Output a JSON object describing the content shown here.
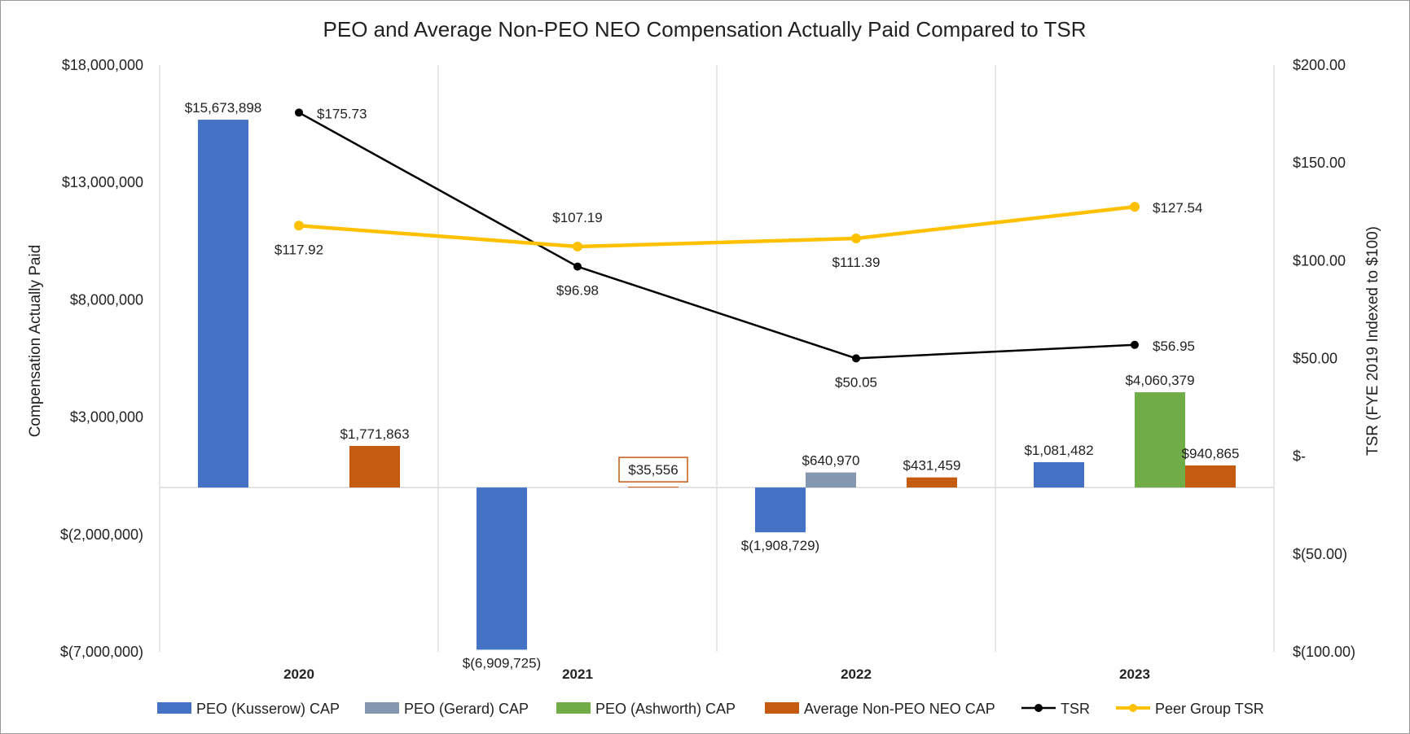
{
  "chart_data": {
    "type": "bar",
    "title": "PEO and Average Non-PEO NEO Compensation Actually Paid Compared to TSR",
    "ylabel": "Compensation Actually Paid",
    "y2label": "TSR (FYE 2019 Indexed to $100)",
    "ylim": [
      -7000000,
      18000000
    ],
    "y2lim": [
      -100,
      200
    ],
    "y_ticks": [
      18000000,
      13000000,
      8000000,
      3000000,
      -2000000,
      -7000000
    ],
    "y_tick_labels": [
      "$18,000,000",
      "$13,000,000",
      "$8,000,000",
      "$3,000,000",
      "$(2,000,000)",
      "$(7,000,000)"
    ],
    "y2_ticks": [
      200,
      150,
      100,
      50,
      0,
      -50,
      -100
    ],
    "y2_tick_labels": [
      "$200.00",
      "$150.00",
      "$100.00",
      "$50.00",
      "$-",
      "$(50.00)",
      "$(100.00)"
    ],
    "categories": [
      "2020",
      "2021",
      "2022",
      "2023"
    ],
    "grid": "vertical",
    "legend_position": "bottom",
    "series": [
      {
        "name": "PEO (Kusserow) CAP",
        "kind": "bar",
        "axis": "left",
        "color": "#4472C4",
        "values": [
          15673898,
          -6909725,
          -1908729,
          1081482
        ],
        "labels": [
          "$15,673,898",
          "$(6,909,725)",
          "$(1,908,729)",
          "$1,081,482"
        ]
      },
      {
        "name": "PEO (Gerard) CAP",
        "kind": "bar",
        "axis": "left",
        "color": "#8497B0",
        "values": [
          null,
          null,
          640970,
          null
        ],
        "labels": [
          null,
          null,
          "$640,970",
          null
        ]
      },
      {
        "name": "PEO (Ashworth) CAP",
        "kind": "bar",
        "axis": "left",
        "color": "#70AD47",
        "values": [
          null,
          null,
          null,
          4060379
        ],
        "labels": [
          null,
          null,
          null,
          "$4,060,379"
        ]
      },
      {
        "name": "Average Non-PEO NEO CAP",
        "kind": "bar",
        "axis": "left",
        "color": "#C55A11",
        "values": [
          1771863,
          35556,
          431459,
          940865
        ],
        "labels": [
          "$1,771,863",
          "$35,556",
          "$431,459",
          "$940,865"
        ]
      },
      {
        "name": "TSR",
        "kind": "line",
        "axis": "right",
        "color": "#000000",
        "values": [
          175.73,
          96.98,
          50.05,
          56.95
        ],
        "labels": [
          "$175.73",
          "$96.98",
          "$50.05",
          "$56.95"
        ]
      },
      {
        "name": "Peer Group TSR",
        "kind": "line",
        "axis": "right",
        "color": "#FFC000",
        "values": [
          117.92,
          107.19,
          111.39,
          127.54
        ],
        "labels": [
          "$117.92",
          "$107.19",
          "$111.39",
          "$127.54"
        ]
      }
    ]
  }
}
